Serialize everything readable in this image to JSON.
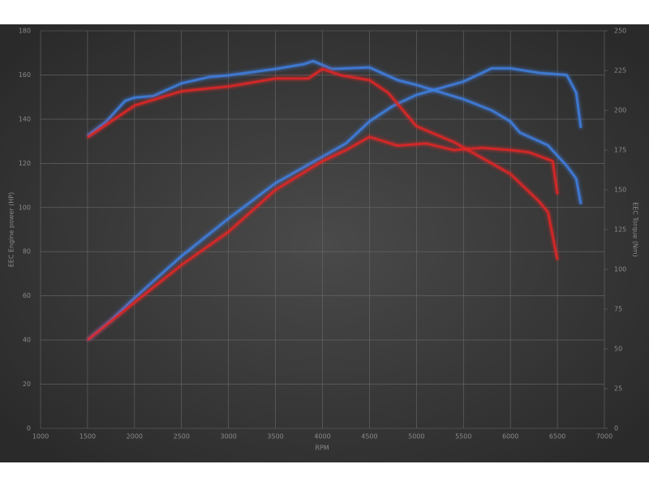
{
  "chart_data": {
    "type": "line",
    "x_label": "RPM",
    "y_label": "EEC Engine power (HP)",
    "y2_label": "EEC Torque (Nm)",
    "xlim": [
      1000,
      7000
    ],
    "xticks": [
      1000,
      1500,
      2000,
      2500,
      3000,
      3500,
      4000,
      4500,
      5000,
      5500,
      6000,
      6500,
      7000
    ],
    "ylim": [
      0,
      180
    ],
    "yticks": [
      0,
      20,
      40,
      60,
      80,
      100,
      120,
      140,
      160,
      180
    ],
    "y2lim": [
      0,
      250
    ],
    "y2ticks": [
      0,
      25,
      50,
      75,
      100,
      125,
      150,
      175,
      200,
      225,
      250
    ],
    "grid": true,
    "series": [
      {
        "color": "#3f7fe0",
        "axis": "y",
        "x": [
          1500,
          1750,
          2000,
          2500,
          3000,
          3500,
          4000,
          4250,
          4500,
          4750,
          5000,
          5500,
          5800,
          6000,
          6300,
          6600,
          6700,
          6750
        ],
        "values": [
          40,
          49,
          59,
          78,
          95,
          111,
          123,
          129,
          139,
          146,
          151,
          157,
          163,
          163,
          161,
          160,
          152,
          136
        ]
      },
      {
        "color": "#e02828",
        "axis": "y",
        "x": [
          1500,
          2000,
          2500,
          3000,
          3500,
          4000,
          4250,
          4500,
          4800,
          5100,
          5400,
          5700,
          6000,
          6200,
          6450,
          6500
        ],
        "values": [
          40,
          57,
          74,
          89,
          108,
          121,
          126,
          132,
          128,
          129,
          126,
          127,
          126,
          125,
          121,
          106
        ]
      },
      {
        "color": "#3f7fe0",
        "axis": "y2",
        "x": [
          1500,
          1700,
          1900,
          2000,
          2200,
          2500,
          2800,
          3000,
          3500,
          3800,
          3900,
          4100,
          4500,
          4800,
          5000,
          5500,
          5800,
          6000,
          6100,
          6400,
          6600,
          6700,
          6750
        ],
        "values": [
          184,
          193,
          206,
          208,
          209,
          217,
          221,
          222,
          226,
          229,
          231,
          226,
          227,
          219,
          216,
          207,
          200,
          193,
          186,
          178,
          165,
          157,
          141
        ]
      },
      {
        "color": "#e02828",
        "axis": "y2",
        "x": [
          1500,
          2000,
          2500,
          3000,
          3500,
          3850,
          4000,
          4200,
          4500,
          4700,
          5000,
          5400,
          5700,
          6000,
          6300,
          6400,
          6500
        ],
        "values": [
          183,
          203,
          212,
          215,
          220,
          220,
          226,
          222,
          219,
          211,
          190,
          180,
          170,
          160,
          143,
          136,
          106
        ]
      }
    ]
  }
}
